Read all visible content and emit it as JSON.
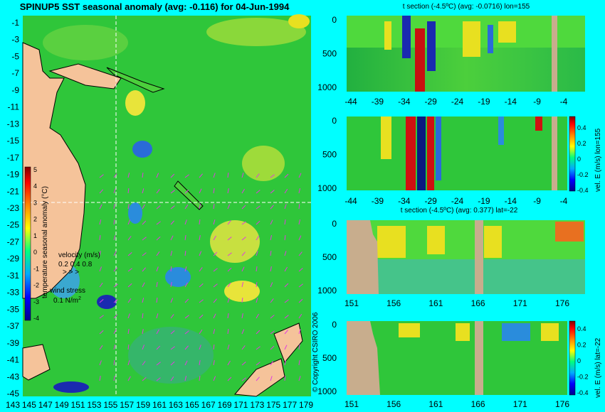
{
  "chart_data": [
    {
      "type": "heatmap",
      "title": "SPINUP5 SST seasonal anomaly (avg: -0.116) for 04-Jun-1994",
      "x_ticks": [
        "143",
        "145",
        "147",
        "149",
        "151",
        "153",
        "155",
        "157",
        "159",
        "161",
        "163",
        "165",
        "167",
        "169",
        "171",
        "173",
        "175",
        "177",
        "179"
      ],
      "y_ticks": [
        "-1",
        "-3",
        "-5",
        "-7",
        "-9",
        "-11",
        "-13",
        "-15",
        "-17",
        "-19",
        "-21",
        "-23",
        "-25",
        "-27",
        "-29",
        "-31",
        "-33",
        "-35",
        "-37",
        "-39",
        "-41",
        "-43",
        "-45"
      ],
      "xlim": [
        142,
        180
      ],
      "ylim": [
        -45,
        0
      ],
      "colorbar_ticks": [
        "5",
        "4",
        "3",
        "2",
        "1",
        "0",
        "-1",
        "-2",
        "-3",
        "-4"
      ],
      "colorbar_label": "temperature seasonal anomaly (°C)",
      "velocity_label": "velocity (m/s)",
      "velocity_scale": "0.2 0.4 0.8",
      "wind_label": "wind stress",
      "wind_scale": "0.1 N/m",
      "wind_sup": "2",
      "crosshair": {
        "lon": 155,
        "lat": -22
      }
    },
    {
      "type": "heatmap",
      "title": "t section (-4.5ºC) (avg: -0.0716) lon=155",
      "x_ticks": [
        "-44",
        "-39",
        "-34",
        "-29",
        "-24",
        "-19",
        "-14",
        "-9",
        "-4"
      ],
      "y_ticks": [
        "0",
        "500",
        "1000"
      ]
    },
    {
      "type": "heatmap",
      "title": "",
      "x_ticks": [
        "-44",
        "-39",
        "-34",
        "-29",
        "-24",
        "-19",
        "-14",
        "-9",
        "-4"
      ],
      "y_ticks": [
        "0",
        "500",
        "1000"
      ],
      "colorbar_ticks": [
        "0.4",
        "0.2",
        "0",
        "-0.2",
        "-0.4"
      ],
      "colorbar_label": "vel. E (m/s) lon=155"
    },
    {
      "type": "heatmap",
      "title": "t section (-4.5ºC) (avg: 0.377) lat=-22",
      "x_ticks": [
        "151",
        "156",
        "161",
        "166",
        "171",
        "176"
      ],
      "y_ticks": [
        "0",
        "500",
        "1000"
      ]
    },
    {
      "type": "heatmap",
      "title": "",
      "x_ticks": [
        "151",
        "156",
        "161",
        "166",
        "171",
        "176"
      ],
      "y_ticks": [
        "0",
        "500",
        "1000"
      ],
      "colorbar_ticks": [
        "0.4",
        "0.2",
        "0",
        "-0.2",
        "-0.4"
      ],
      "colorbar_label": "vel. E (m/s) lat=-22"
    }
  ],
  "copyright": "© Copyright CSIRO 2006",
  "colors": {
    "background": "#00ffff",
    "land": "#f5c39a",
    "section_land": "#c8ad8d",
    "water": "#2fc63a",
    "arrows": "#e03ce0"
  }
}
